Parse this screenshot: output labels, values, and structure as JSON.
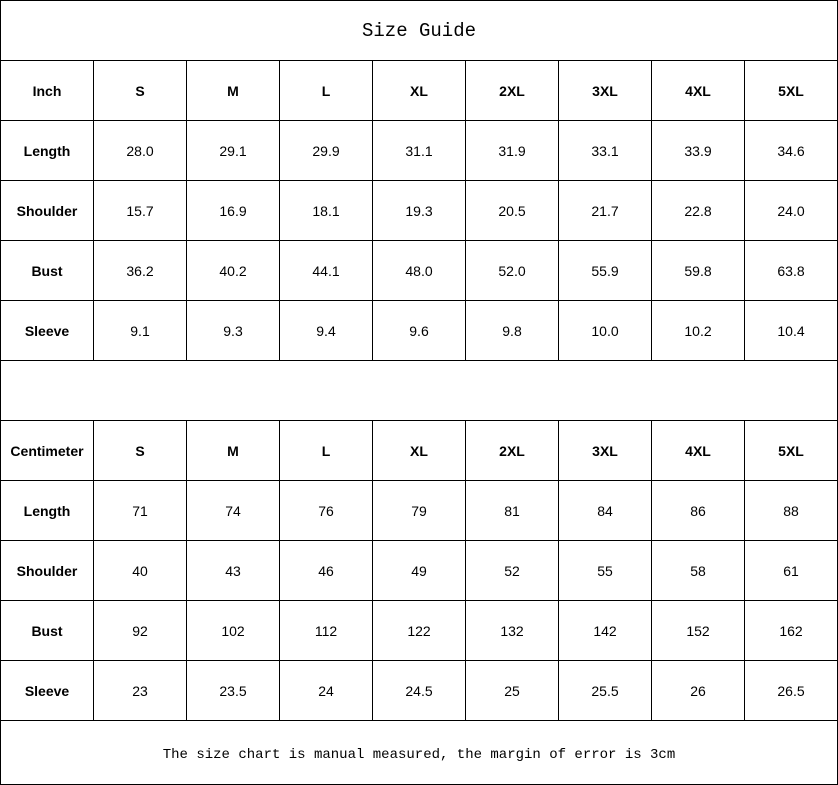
{
  "title": "Size Guide",
  "sizes": [
    "S",
    "M",
    "L",
    "XL",
    "2XL",
    "3XL",
    "4XL",
    "5XL"
  ],
  "inch": {
    "unit_label": "Inch",
    "rows": [
      {
        "label": "Length",
        "values": [
          "28.0",
          "29.1",
          "29.9",
          "31.1",
          "31.9",
          "33.1",
          "33.9",
          "34.6"
        ]
      },
      {
        "label": "Shoulder",
        "values": [
          "15.7",
          "16.9",
          "18.1",
          "19.3",
          "20.5",
          "21.7",
          "22.8",
          "24.0"
        ]
      },
      {
        "label": "Bust",
        "values": [
          "36.2",
          "40.2",
          "44.1",
          "48.0",
          "52.0",
          "55.9",
          "59.8",
          "63.8"
        ]
      },
      {
        "label": "Sleeve",
        "values": [
          "9.1",
          "9.3",
          "9.4",
          "9.6",
          "9.8",
          "10.0",
          "10.2",
          "10.4"
        ]
      }
    ]
  },
  "centimeter": {
    "unit_label": "Centimeter",
    "rows": [
      {
        "label": "Length",
        "values": [
          "71",
          "74",
          "76",
          "79",
          "81",
          "84",
          "86",
          "88"
        ]
      },
      {
        "label": "Shoulder",
        "values": [
          "40",
          "43",
          "46",
          "49",
          "52",
          "55",
          "58",
          "61"
        ]
      },
      {
        "label": "Bust",
        "values": [
          "92",
          "102",
          "112",
          "122",
          "132",
          "142",
          "152",
          "162"
        ]
      },
      {
        "label": "Sleeve",
        "values": [
          "23",
          "23.5",
          "24",
          "24.5",
          "25",
          "25.5",
          "26",
          "26.5"
        ]
      }
    ]
  },
  "note": "The size chart is manual measured, the margin of error is 3cm"
}
